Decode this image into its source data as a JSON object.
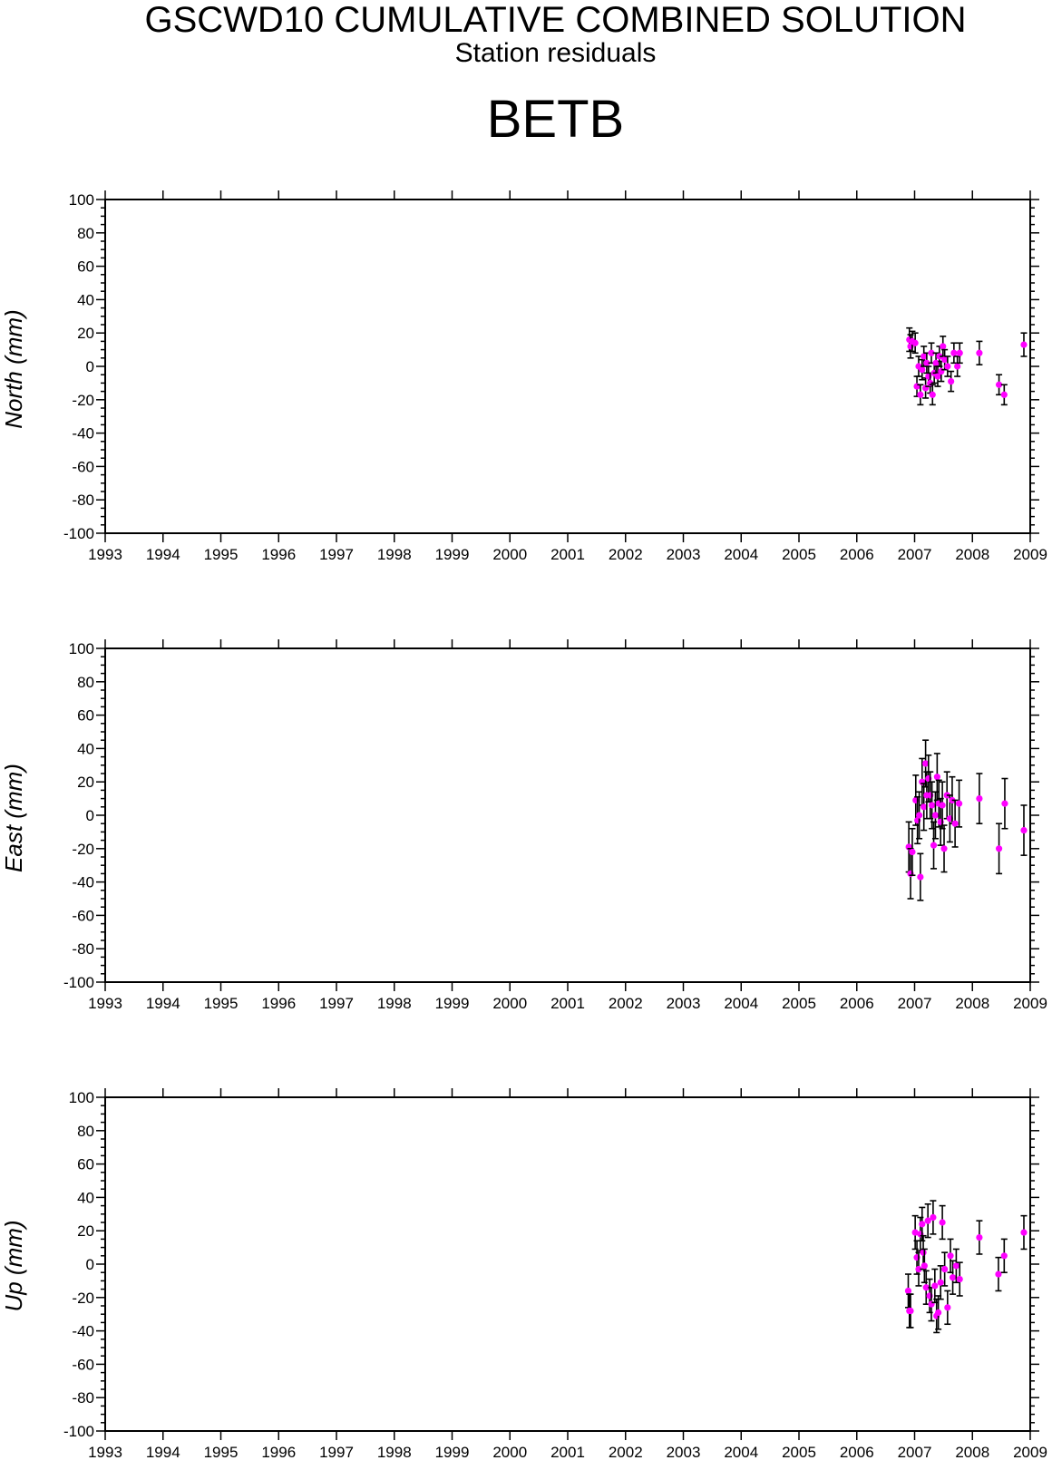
{
  "header": {
    "title": "GSCWD10 CUMULATIVE COMBINED SOLUTION",
    "subtitle": "Station residuals",
    "station": "BETB"
  },
  "colors": {
    "marker": "#ff00ff",
    "errorbar": "#000000",
    "axis": "#000000"
  },
  "chart_data": [
    {
      "type": "scatter",
      "ylabel": "North (mm)",
      "xlim": [
        1993,
        2009
      ],
      "ylim": [
        -100,
        100
      ],
      "x_ticks": [
        "1993",
        "1994",
        "1995",
        "1996",
        "1997",
        "1998",
        "1999",
        "2000",
        "2001",
        "2002",
        "2003",
        "2004",
        "2005",
        "2006",
        "2007",
        "2008",
        "2009"
      ],
      "y_ticks": [
        "100",
        "80",
        "60",
        "40",
        "20",
        "0",
        "-20",
        "-40",
        "-60",
        "-80",
        "-100"
      ],
      "grid": false,
      "error_bars": true,
      "points": [
        {
          "x": 2006.91,
          "y": 16,
          "err": 7
        },
        {
          "x": 2006.93,
          "y": 12,
          "err": 7
        },
        {
          "x": 2006.96,
          "y": 15,
          "err": 6
        },
        {
          "x": 2007.01,
          "y": 14,
          "err": 6
        },
        {
          "x": 2007.04,
          "y": -12,
          "err": 6
        },
        {
          "x": 2007.07,
          "y": 0,
          "err": 6
        },
        {
          "x": 2007.1,
          "y": -17,
          "err": 6
        },
        {
          "x": 2007.13,
          "y": -2,
          "err": 6
        },
        {
          "x": 2007.16,
          "y": 6,
          "err": 6
        },
        {
          "x": 2007.19,
          "y": -13,
          "err": 6
        },
        {
          "x": 2007.21,
          "y": 2,
          "err": 6
        },
        {
          "x": 2007.24,
          "y": -6,
          "err": 6
        },
        {
          "x": 2007.27,
          "y": -10,
          "err": 6
        },
        {
          "x": 2007.29,
          "y": 8,
          "err": 6
        },
        {
          "x": 2007.31,
          "y": -17,
          "err": 6
        },
        {
          "x": 2007.34,
          "y": -4,
          "err": 6
        },
        {
          "x": 2007.37,
          "y": 2,
          "err": 6
        },
        {
          "x": 2007.4,
          "y": -6,
          "err": 6
        },
        {
          "x": 2007.43,
          "y": 6,
          "err": 6
        },
        {
          "x": 2007.46,
          "y": -3,
          "err": 6
        },
        {
          "x": 2007.49,
          "y": 12,
          "err": 6
        },
        {
          "x": 2007.52,
          "y": 4,
          "err": 6
        },
        {
          "x": 2007.57,
          "y": 0,
          "err": 6
        },
        {
          "x": 2007.63,
          "y": -9,
          "err": 6
        },
        {
          "x": 2007.68,
          "y": 8,
          "err": 6
        },
        {
          "x": 2007.74,
          "y": 0,
          "err": 6
        },
        {
          "x": 2007.78,
          "y": 8,
          "err": 6
        },
        {
          "x": 2008.12,
          "y": 8,
          "err": 7
        },
        {
          "x": 2008.46,
          "y": -11,
          "err": 6
        },
        {
          "x": 2008.55,
          "y": -17,
          "err": 6
        },
        {
          "x": 2008.89,
          "y": 13,
          "err": 7
        }
      ]
    },
    {
      "type": "scatter",
      "ylabel": "East (mm)",
      "xlim": [
        1993,
        2009
      ],
      "ylim": [
        -100,
        100
      ],
      "x_ticks": [
        "1993",
        "1994",
        "1995",
        "1996",
        "1997",
        "1998",
        "1999",
        "2000",
        "2001",
        "2002",
        "2003",
        "2004",
        "2005",
        "2006",
        "2007",
        "2008",
        "2009"
      ],
      "y_ticks": [
        "100",
        "80",
        "60",
        "40",
        "20",
        "0",
        "-20",
        "-40",
        "-60",
        "-80",
        "-100"
      ],
      "grid": false,
      "error_bars": true,
      "points": [
        {
          "x": 2006.9,
          "y": -19,
          "err": 15
        },
        {
          "x": 2006.93,
          "y": -35,
          "err": 15
        },
        {
          "x": 2006.96,
          "y": -22,
          "err": 14
        },
        {
          "x": 2007.02,
          "y": 9,
          "err": 15
        },
        {
          "x": 2007.05,
          "y": -3,
          "err": 14
        },
        {
          "x": 2007.08,
          "y": 0,
          "err": 14
        },
        {
          "x": 2007.1,
          "y": -37,
          "err": 14
        },
        {
          "x": 2007.13,
          "y": 20,
          "err": 14
        },
        {
          "x": 2007.16,
          "y": 5,
          "err": 14
        },
        {
          "x": 2007.19,
          "y": 31,
          "err": 14
        },
        {
          "x": 2007.21,
          "y": 12,
          "err": 14
        },
        {
          "x": 2007.24,
          "y": 22,
          "err": 14
        },
        {
          "x": 2007.27,
          "y": 12,
          "err": 14
        },
        {
          "x": 2007.3,
          "y": 6,
          "err": 14
        },
        {
          "x": 2007.33,
          "y": -18,
          "err": 14
        },
        {
          "x": 2007.36,
          "y": 0,
          "err": 14
        },
        {
          "x": 2007.39,
          "y": 23,
          "err": 14
        },
        {
          "x": 2007.42,
          "y": 7,
          "err": 14
        },
        {
          "x": 2007.45,
          "y": -4,
          "err": 14
        },
        {
          "x": 2007.48,
          "y": 6,
          "err": 14
        },
        {
          "x": 2007.51,
          "y": -20,
          "err": 14
        },
        {
          "x": 2007.56,
          "y": 12,
          "err": 14
        },
        {
          "x": 2007.61,
          "y": -2,
          "err": 14
        },
        {
          "x": 2007.65,
          "y": 9,
          "err": 14
        },
        {
          "x": 2007.7,
          "y": -5,
          "err": 14
        },
        {
          "x": 2007.77,
          "y": 7,
          "err": 14
        },
        {
          "x": 2008.12,
          "y": 10,
          "err": 15
        },
        {
          "x": 2008.46,
          "y": -20,
          "err": 15
        },
        {
          "x": 2008.56,
          "y": 7,
          "err": 15
        },
        {
          "x": 2008.89,
          "y": -9,
          "err": 15
        }
      ]
    },
    {
      "type": "scatter",
      "ylabel": "Up (mm)",
      "xlim": [
        1993,
        2009
      ],
      "ylim": [
        -100,
        100
      ],
      "x_ticks": [
        "1993",
        "1994",
        "1995",
        "1996",
        "1997",
        "1998",
        "1999",
        "2000",
        "2001",
        "2002",
        "2003",
        "2004",
        "2005",
        "2006",
        "2007",
        "2008",
        "2009"
      ],
      "y_ticks": [
        "100",
        "80",
        "60",
        "40",
        "20",
        "0",
        "-20",
        "-40",
        "-60",
        "-80",
        "-100"
      ],
      "grid": false,
      "error_bars": true,
      "points": [
        {
          "x": 2006.89,
          "y": -16,
          "err": 10
        },
        {
          "x": 2006.91,
          "y": -28,
          "err": 10
        },
        {
          "x": 2006.93,
          "y": -28,
          "err": 10
        },
        {
          "x": 2007.01,
          "y": 19,
          "err": 10
        },
        {
          "x": 2007.04,
          "y": 4,
          "err": 10
        },
        {
          "x": 2007.07,
          "y": -3,
          "err": 10
        },
        {
          "x": 2007.1,
          "y": 18,
          "err": 10
        },
        {
          "x": 2007.13,
          "y": 24,
          "err": 10
        },
        {
          "x": 2007.15,
          "y": 7,
          "err": 10
        },
        {
          "x": 2007.17,
          "y": -1,
          "err": 10
        },
        {
          "x": 2007.2,
          "y": -14,
          "err": 10
        },
        {
          "x": 2007.23,
          "y": 26,
          "err": 10
        },
        {
          "x": 2007.26,
          "y": -19,
          "err": 10
        },
        {
          "x": 2007.29,
          "y": -24,
          "err": 10
        },
        {
          "x": 2007.32,
          "y": 28,
          "err": 10
        },
        {
          "x": 2007.35,
          "y": -13,
          "err": 10
        },
        {
          "x": 2007.38,
          "y": -31,
          "err": 10
        },
        {
          "x": 2007.41,
          "y": -29,
          "err": 10
        },
        {
          "x": 2007.45,
          "y": -11,
          "err": 10
        },
        {
          "x": 2007.48,
          "y": 25,
          "err": 10
        },
        {
          "x": 2007.52,
          "y": -3,
          "err": 10
        },
        {
          "x": 2007.57,
          "y": -26,
          "err": 10
        },
        {
          "x": 2007.62,
          "y": 5,
          "err": 10
        },
        {
          "x": 2007.66,
          "y": -8,
          "err": 10
        },
        {
          "x": 2007.72,
          "y": -1,
          "err": 10
        },
        {
          "x": 2007.78,
          "y": -9,
          "err": 10
        },
        {
          "x": 2008.12,
          "y": 16,
          "err": 10
        },
        {
          "x": 2008.45,
          "y": -6,
          "err": 10
        },
        {
          "x": 2008.55,
          "y": 5,
          "err": 10
        },
        {
          "x": 2008.89,
          "y": 19,
          "err": 10
        }
      ]
    }
  ]
}
